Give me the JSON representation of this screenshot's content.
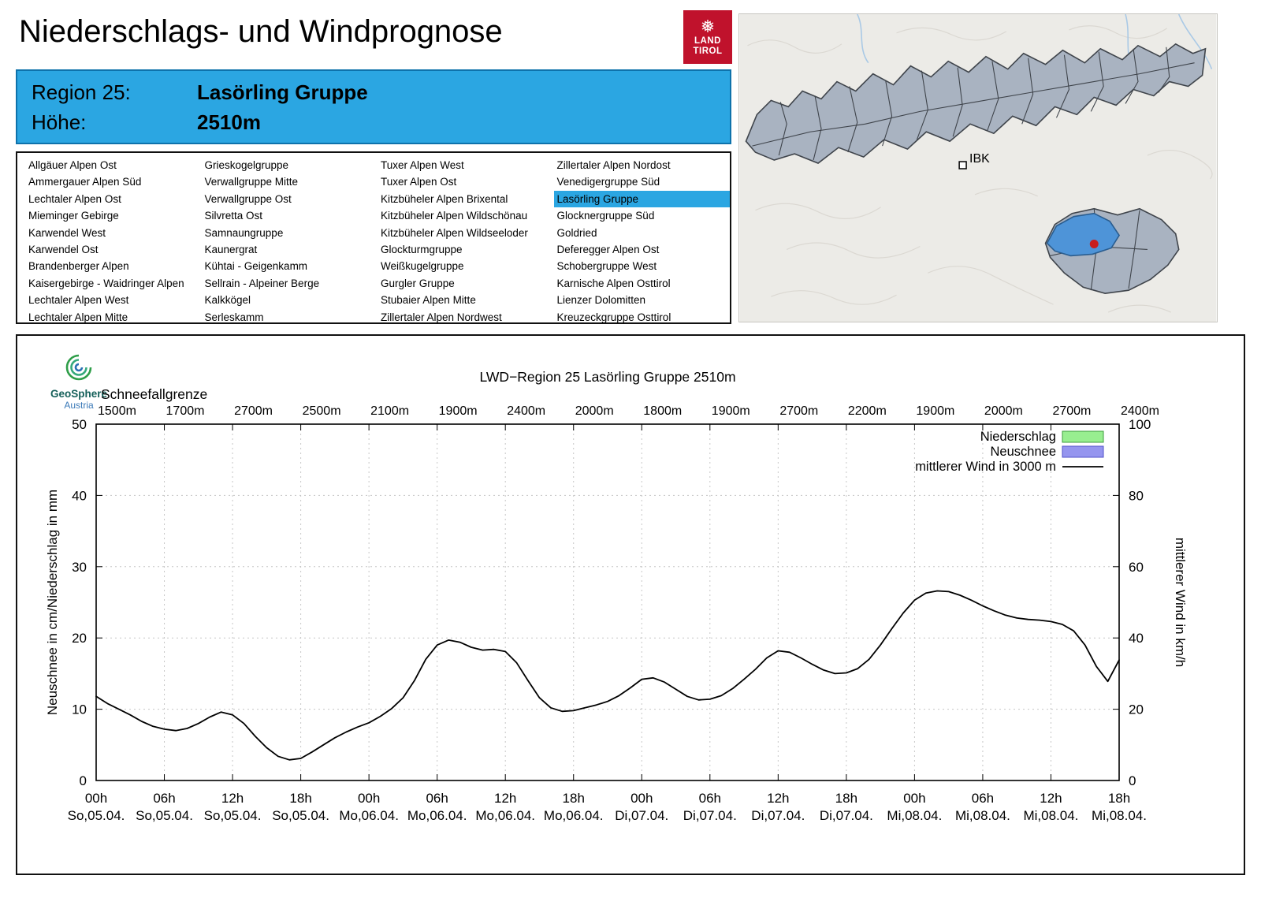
{
  "header": {
    "title": "Niederschlags- und Windprognose"
  },
  "logo": {
    "snowflake": "❅",
    "line1": "LAND",
    "line2": "TIROL"
  },
  "map": {
    "city_label": "IBK"
  },
  "region_box": {
    "region_label": "Region 25:",
    "region_value": "Lasörling Gruppe",
    "hoehe_label": "Höhe:",
    "hoehe_value": "2510m"
  },
  "region_table": {
    "selected": "Lasörling Gruppe",
    "columns": [
      [
        "Allgäuer Alpen Ost",
        "Ammergauer Alpen Süd",
        "Lechtaler Alpen Ost",
        "Mieminger Gebirge",
        "Karwendel West",
        "Karwendel Ost",
        "Brandenberger Alpen",
        "Kaisergebirge - Waidringer Alpen",
        "Lechtaler Alpen West",
        "Lechtaler Alpen Mitte"
      ],
      [
        "Grieskogelgruppe",
        "Verwallgruppe Mitte",
        "Verwallgruppe Ost",
        "Silvretta Ost",
        "Samnaungruppe",
        "Kaunergrat",
        "Kühtai - Geigenkamm",
        "Sellrain - Alpeiner Berge",
        "Kalkkögel",
        "Serleskamm"
      ],
      [
        "Tuxer Alpen West",
        "Tuxer Alpen Ost",
        "Kitzbüheler Alpen Brixental",
        "Kitzbüheler Alpen Wildschönau",
        "Kitzbüheler Alpen Wildseeloder",
        "Glockturmgruppe",
        "Weißkugelgruppe",
        "Gurgler Gruppe",
        "Stubaier Alpen Mitte",
        "Zillertaler Alpen Nordwest"
      ],
      [
        "Zillertaler Alpen Nordost",
        "Venedigergruppe Süd",
        "Lasörling Gruppe",
        "Glocknergruppe Süd",
        "Goldried",
        "Deferegger Alpen Ost",
        "Schobergruppe West",
        "Karnische Alpen Osttirol",
        "Lienzer Dolomitten",
        "Kreuzeckgruppe Osttirol"
      ]
    ]
  },
  "geosphere": {
    "name": "GeoSphere",
    "sub": "Austria"
  },
  "chart_data": {
    "type": "line",
    "title": "LWD−Region 25 Lasörling Gruppe 2510m",
    "ylabel_left": "Neuschnee in cm/Niederschlag in mm",
    "ylabel_right": "mittlerer Wind in km/h",
    "ylim_left": [
      0,
      50
    ],
    "ylim_right": [
      0,
      100
    ],
    "yticks_left": [
      0,
      10,
      20,
      30,
      40,
      50
    ],
    "yticks_right": [
      0,
      20,
      40,
      60,
      80,
      100
    ],
    "grid": true,
    "snowline_label": "Schneefallgrenze",
    "snowline_values": [
      "1500m",
      "1700m",
      "2700m",
      "2500m",
      "2100m",
      "1900m",
      "2400m",
      "2000m",
      "1800m",
      "1900m",
      "2700m",
      "2200m",
      "1900m",
      "2000m",
      "2700m",
      "2400m"
    ],
    "x_hours_range": [
      0,
      90
    ],
    "x_tick_hours": [
      "00h",
      "06h",
      "12h",
      "18h",
      "00h",
      "06h",
      "12h",
      "18h",
      "00h",
      "06h",
      "12h",
      "18h",
      "00h",
      "06h",
      "12h",
      "18h"
    ],
    "x_tick_days": [
      "So,05.04.",
      "So,05.04.",
      "So,05.04.",
      "So,05.04.",
      "Mo,06.04.",
      "Mo,06.04.",
      "Mo,06.04.",
      "Mo,06.04.",
      "Di,07.04.",
      "Di,07.04.",
      "Di,07.04.",
      "Di,07.04.",
      "Mi,08.04.",
      "Mi,08.04.",
      "Mi,08.04.",
      "Mi,08.04."
    ],
    "legend": [
      {
        "label": "Niederschlag",
        "type": "box",
        "fill": "#98ee90",
        "stroke": "#3c9e3c"
      },
      {
        "label": "Neuschnee",
        "type": "box",
        "fill": "#9595ef",
        "stroke": "#5151c8"
      },
      {
        "label": "mittlerer Wind in 3000 m",
        "type": "line",
        "stroke": "#000000"
      }
    ],
    "series": [
      {
        "name": "Niederschlag",
        "axis": "left",
        "unit": "mm",
        "values": []
      },
      {
        "name": "Neuschnee",
        "axis": "left",
        "unit": "cm",
        "values": []
      },
      {
        "name": "mittlerer Wind in 3000 m",
        "axis": "right",
        "unit": "km/h",
        "hour_start": 0,
        "hour_step": 1,
        "values_kmh": [
          23.6,
          21.6,
          20,
          18.4,
          16.6,
          15.2,
          14.4,
          14,
          14.6,
          16,
          17.8,
          19.2,
          18.4,
          16,
          12.4,
          9.2,
          6.8,
          5.8,
          6.2,
          8,
          10,
          12,
          13.6,
          15,
          16.2,
          18,
          20.2,
          23.2,
          28,
          34,
          38,
          39.4,
          38.8,
          37.4,
          36.6,
          36.8,
          36.2,
          33,
          28,
          23.2,
          20.4,
          19.4,
          19.6,
          20.4,
          21.2,
          22.2,
          23.8,
          26,
          28.4,
          28.8,
          27.6,
          25.6,
          23.6,
          22.6,
          22.8,
          23.8,
          25.8,
          28.4,
          31.2,
          34.4,
          36.4,
          36,
          34.4,
          32.6,
          31,
          30,
          30.2,
          31.4,
          34,
          38,
          42.6,
          47,
          50.6,
          52.6,
          53.2,
          53,
          52,
          50.6,
          49,
          47.6,
          46.4,
          45.6,
          45.2,
          45,
          44.6,
          43.8,
          42,
          38,
          32,
          27.8,
          33.8
        ]
      }
    ]
  }
}
